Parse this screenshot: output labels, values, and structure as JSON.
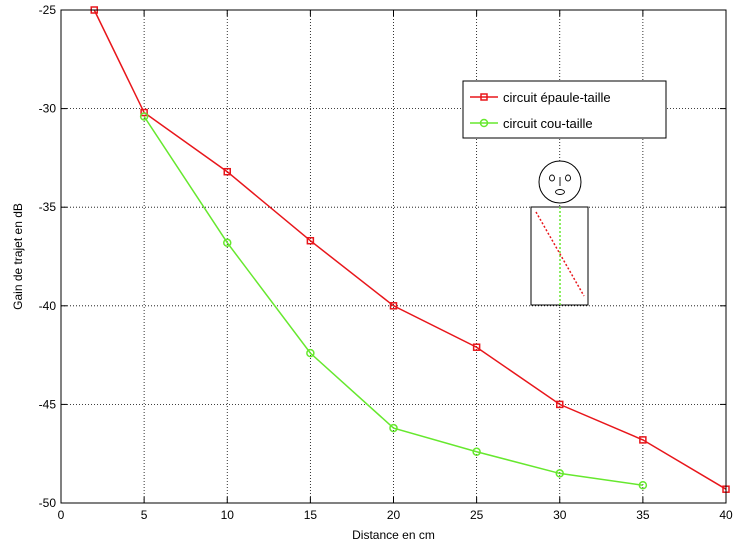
{
  "chart_data": {
    "type": "line",
    "title": "",
    "xlabel": "Distance en cm",
    "ylabel": "Gain de trajet en dB",
    "xlim": [
      0,
      40
    ],
    "ylim": [
      -50,
      -25
    ],
    "xticks": [
      0,
      5,
      10,
      15,
      20,
      25,
      30,
      35,
      40
    ],
    "yticks": [
      -50,
      -45,
      -40,
      -35,
      -30,
      -25
    ],
    "grid": true,
    "legend_position": "upper-right",
    "series": [
      {
        "name": "circuit épaule-taille",
        "color": "#e8161b",
        "marker": "square",
        "x": [
          2,
          5,
          10,
          15,
          20,
          25,
          30,
          35,
          40
        ],
        "y": [
          -25.0,
          -30.2,
          -33.2,
          -36.7,
          -40.0,
          -42.1,
          -45.0,
          -46.8,
          -49.3
        ]
      },
      {
        "name": "circuit cou-taille",
        "color": "#66e82e",
        "marker": "circle",
        "x": [
          5,
          10,
          15,
          20,
          25,
          30,
          35
        ],
        "y": [
          -30.4,
          -36.8,
          -42.4,
          -46.2,
          -47.4,
          -48.5,
          -49.1
        ]
      }
    ]
  }
}
